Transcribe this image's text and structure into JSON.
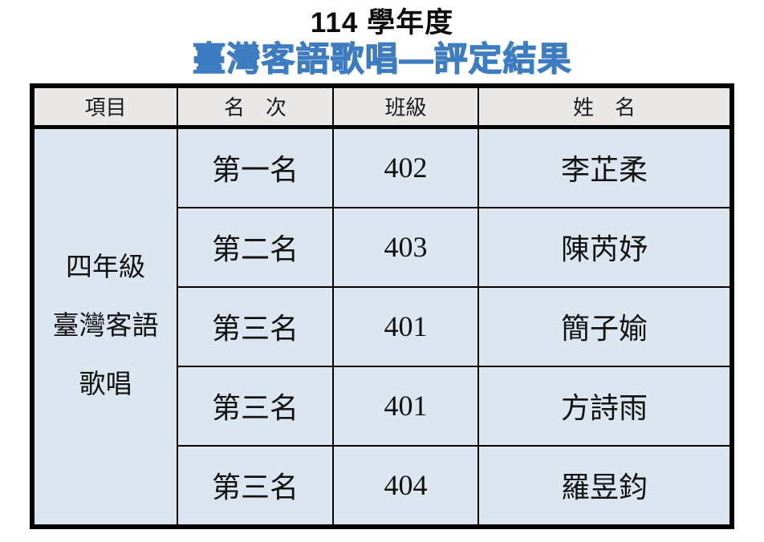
{
  "page": {
    "title_line1": "114 學年度",
    "title_line2": "臺灣客語歌唱—評定結果"
  },
  "table": {
    "headers": [
      "項目",
      "名　次",
      "班級",
      "姓　名"
    ],
    "item_lines": [
      "四年級",
      "臺灣客語",
      "歌唱"
    ],
    "rows": [
      {
        "rank": "第一名",
        "class": "402",
        "name": "李芷柔"
      },
      {
        "rank": "第二名",
        "class": "403",
        "name": "陳芮妤"
      },
      {
        "rank": "第三名",
        "class": "401",
        "name": "簡子媮"
      },
      {
        "rank": "第三名",
        "class": "401",
        "name": "方詩雨"
      },
      {
        "rank": "第三名",
        "class": "404",
        "name": "羅昱鈞"
      }
    ]
  },
  "colors": {
    "title_accent": "#3e7cc1",
    "header_bg": "#e9e8e6",
    "row_bg": "#dce6f1",
    "border": "#000000",
    "page_bg": "#ffffff"
  }
}
